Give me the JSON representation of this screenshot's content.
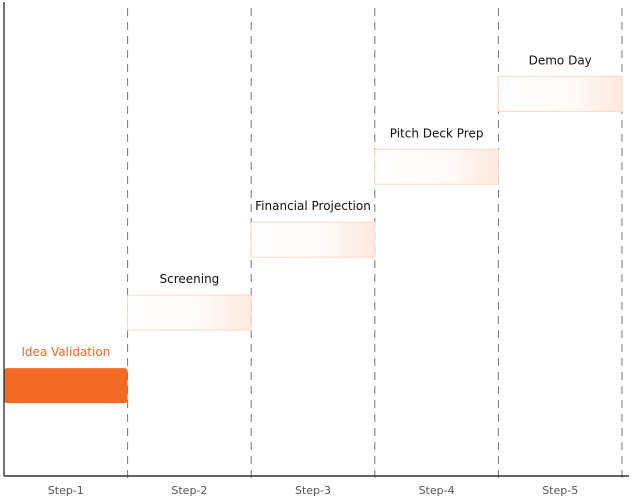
{
  "chart_data": {
    "type": "bar",
    "categories": [
      "Step-1",
      "Step-2",
      "Step-3",
      "Step-4",
      "Step-5"
    ],
    "stages": [
      {
        "label": "Idea Validation",
        "level": 1,
        "active": true
      },
      {
        "label": "Screening",
        "level": 2,
        "active": false
      },
      {
        "label": "Financial Projection",
        "level": 3,
        "active": false
      },
      {
        "label": "Pitch Deck Prep",
        "level": 4,
        "active": false
      },
      {
        "label": "Demo Day",
        "level": 5,
        "active": false
      }
    ],
    "ylim": [
      0,
      6.5
    ],
    "grid": true,
    "colors": {
      "active_fill": "#f26a24",
      "active_text": "#f06a25",
      "inactive_fill": "#fff4ee",
      "inactive_border": "#fbd9c6",
      "grid_line": "#777777",
      "axis_line": "#333333"
    }
  }
}
